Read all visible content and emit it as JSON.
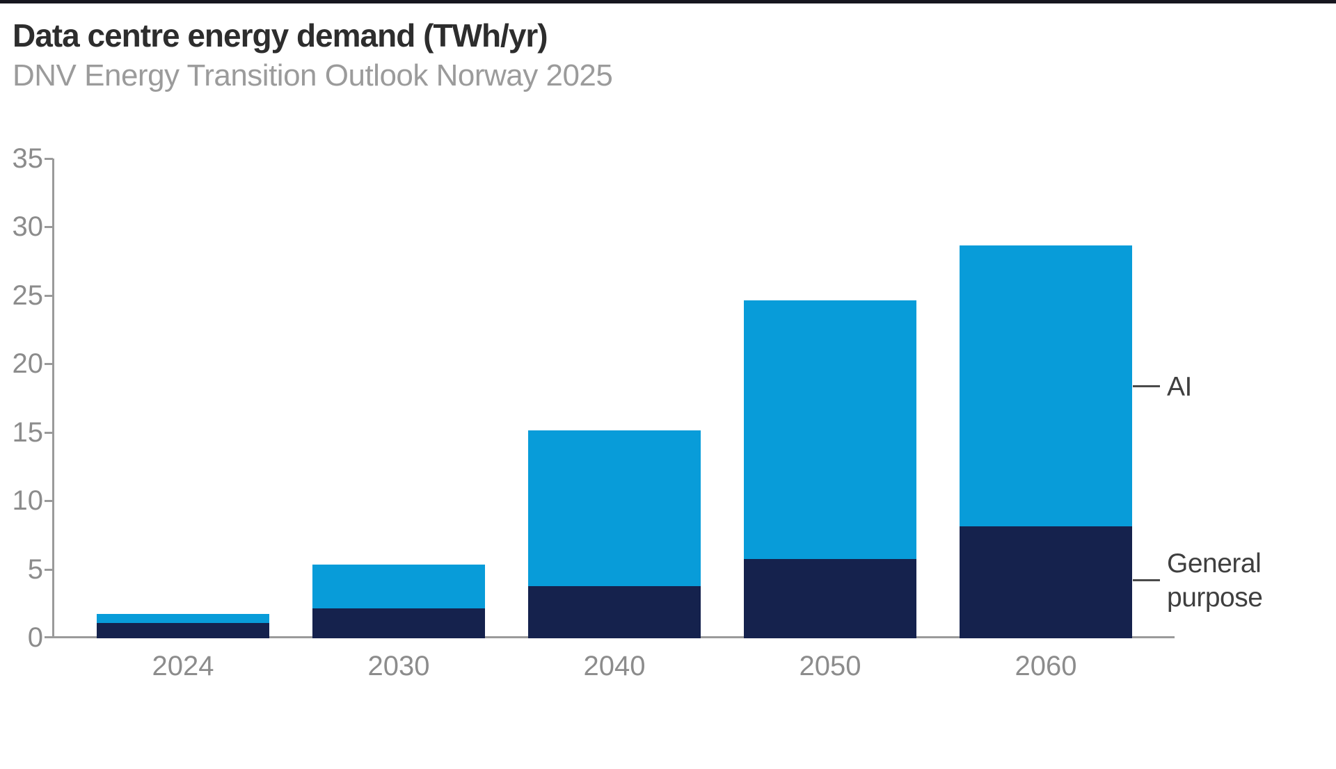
{
  "header": {
    "title": "Data centre energy demand (TWh/yr)",
    "subtitle": "DNV Energy Transition Outlook Norway 2025"
  },
  "chart_data": {
    "type": "bar",
    "stacked": true,
    "title": "Data centre energy demand (TWh/yr)",
    "subtitle": "DNV Energy Transition Outlook Norway 2025",
    "categories": [
      "2024",
      "2030",
      "2040",
      "2050",
      "2060"
    ],
    "series": [
      {
        "name": "General purpose",
        "color": "#15224d",
        "values": [
          1.1,
          2.2,
          3.8,
          5.8,
          8.2
        ]
      },
      {
        "name": "AI",
        "color": "#089cd9",
        "values": [
          0.7,
          3.2,
          11.4,
          18.9,
          20.5
        ]
      }
    ],
    "totals": [
      1.8,
      5.4,
      15.2,
      24.7,
      28.7
    ],
    "ylabel": "TWh/yr",
    "ylim": [
      0,
      35
    ],
    "yticks": [
      0,
      5,
      10,
      15,
      20,
      25,
      30,
      35
    ],
    "grid": false,
    "legend_position": "right-annotations"
  },
  "colors": {
    "axis": "#9a9a9a",
    "tick_label": "#8c8c8c",
    "annotation_text": "#3f3f3f",
    "annotation_line": "#4a4a4a",
    "top_bar": "#17171f",
    "title_text": "#2d2d2d",
    "subtitle_text": "#9b9b9b"
  }
}
